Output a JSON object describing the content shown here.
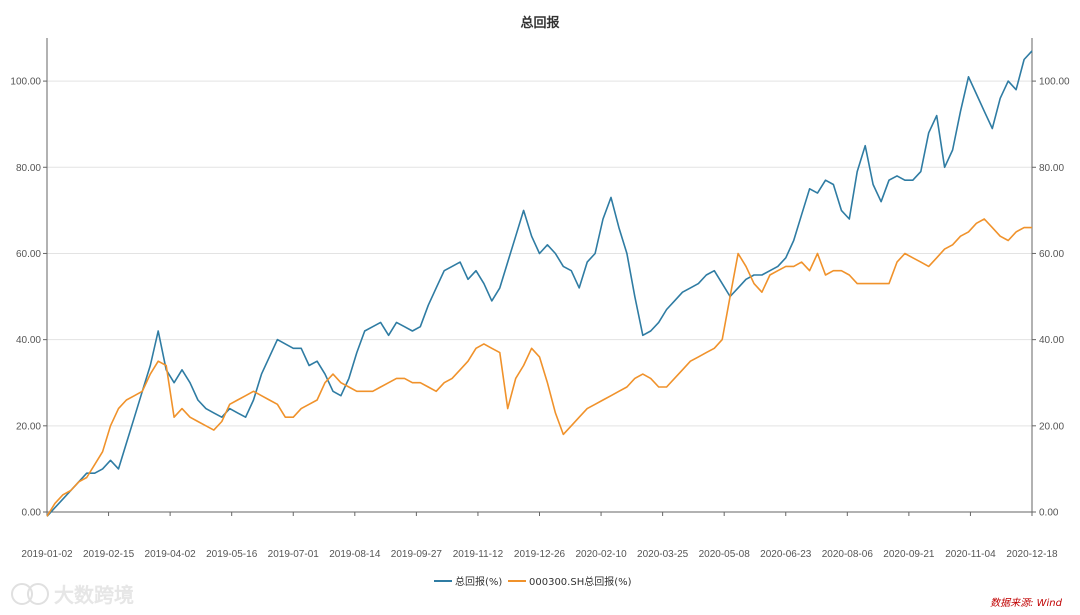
{
  "chart_data": {
    "type": "line",
    "title": "总回报",
    "xlabel": "",
    "ylabel": "",
    "ylim": [
      0,
      110
    ],
    "y_ticks": [
      "0.00",
      "20.00",
      "40.00",
      "60.00",
      "80.00",
      "100.00"
    ],
    "y_tick_values": [
      0,
      20,
      40,
      60,
      80,
      100
    ],
    "x_ticks": [
      "2019-01-02",
      "2019-02-15",
      "2019-04-02",
      "2019-05-16",
      "2019-07-01",
      "2019-08-14",
      "2019-09-27",
      "2019-11-12",
      "2019-12-26",
      "2020-02-10",
      "2020-03-25",
      "2020-05-08",
      "2020-06-23",
      "2020-08-06",
      "2020-09-21",
      "2020-11-04",
      "2020-12-18"
    ],
    "grid": true,
    "legend_position": "bottom-center",
    "series": [
      {
        "name": "总回报(%)",
        "color": "#2f7ca3",
        "values": [
          -1,
          1,
          3,
          5,
          7,
          9,
          9,
          10,
          12,
          10,
          16,
          22,
          28,
          34,
          42,
          33,
          30,
          33,
          30,
          26,
          24,
          23,
          22,
          24,
          23,
          22,
          26,
          32,
          36,
          40,
          39,
          38,
          38,
          34,
          35,
          32,
          28,
          27,
          31,
          37,
          42,
          43,
          44,
          41,
          44,
          43,
          42,
          43,
          48,
          52,
          56,
          57,
          58,
          54,
          56,
          53,
          49,
          52,
          58,
          64,
          70,
          64,
          60,
          62,
          60,
          57,
          56,
          52,
          58,
          60,
          68,
          73,
          66,
          60,
          50,
          41,
          42,
          44,
          47,
          49,
          51,
          52,
          53,
          55,
          56,
          53,
          50,
          52,
          54,
          55,
          55,
          56,
          57,
          59,
          63,
          69,
          75,
          74,
          77,
          76,
          70,
          68,
          79,
          85,
          76,
          72,
          77,
          78,
          77,
          77,
          79,
          88,
          92,
          80,
          84,
          93,
          101,
          97,
          93,
          89,
          96,
          100,
          98,
          105,
          107
        ]
      },
      {
        "name": "000300.SH总回报(%)",
        "color": "#f0922b",
        "values": [
          -1,
          2,
          4,
          5,
          7,
          8,
          11,
          14,
          20,
          24,
          26,
          27,
          28,
          32,
          35,
          34,
          22,
          24,
          22,
          21,
          20,
          19,
          21,
          25,
          26,
          27,
          28,
          27,
          26,
          25,
          22,
          22,
          24,
          25,
          26,
          30,
          32,
          30,
          29,
          28,
          28,
          28,
          29,
          30,
          31,
          31,
          30,
          30,
          29,
          28,
          30,
          31,
          33,
          35,
          38,
          39,
          38,
          37,
          24,
          31,
          34,
          38,
          36,
          30,
          23,
          18,
          20,
          22,
          24,
          25,
          26,
          27,
          28,
          29,
          31,
          32,
          31,
          29,
          29,
          31,
          33,
          35,
          36,
          37,
          38,
          40,
          50,
          60,
          57,
          53,
          51,
          55,
          56,
          57,
          57,
          58,
          56,
          60,
          55,
          56,
          56,
          55,
          53,
          53,
          53,
          53,
          53,
          58,
          60,
          59,
          58,
          57,
          59,
          61,
          62,
          64,
          65,
          67,
          68,
          66,
          64,
          63,
          65,
          66,
          66
        ]
      }
    ]
  },
  "source_text": "数据来源: Wind",
  "watermark_text": "大数跨境"
}
